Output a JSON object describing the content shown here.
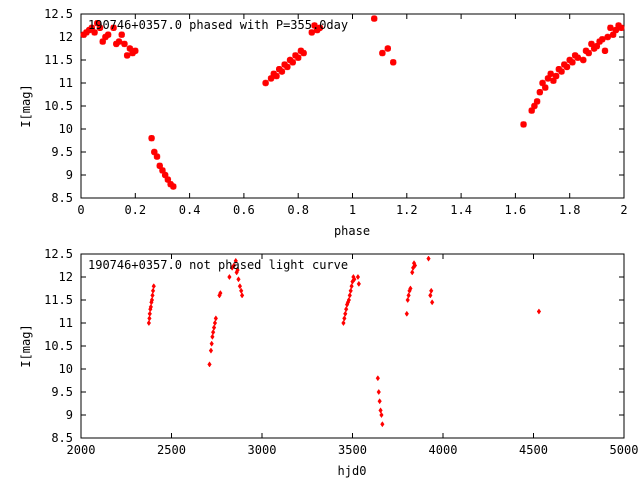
{
  "chart_data": [
    {
      "type": "scatter",
      "title": "190746+0357.0 phased with P=355.0day",
      "xlabel": "phase",
      "ylabel": "I[mag]",
      "xlim": [
        0,
        2
      ],
      "ylim": [
        12.5,
        8.5
      ],
      "y_inverted": true,
      "xticks": [
        "0",
        "0.2",
        "0.4",
        "0.6",
        "0.8",
        "1",
        "1.2",
        "1.4",
        "1.6",
        "1.8",
        "2"
      ],
      "yticks": [
        "8.5",
        "9",
        "9.5",
        "10",
        "10.5",
        "11",
        "11.5",
        "12",
        "12.5"
      ],
      "marker_color": "#ff0000",
      "grid": false,
      "series": [
        {
          "points": [
            [
              0.01,
              12.05
            ],
            [
              0.02,
              12.1
            ],
            [
              0.03,
              12.15
            ],
            [
              0.04,
              12.2
            ],
            [
              0.05,
              12.1
            ],
            [
              0.06,
              12.3
            ],
            [
              0.07,
              12.2
            ],
            [
              0.08,
              11.9
            ],
            [
              0.09,
              12.0
            ],
            [
              0.1,
              12.05
            ],
            [
              0.12,
              12.2
            ],
            [
              0.13,
              11.85
            ],
            [
              0.14,
              11.9
            ],
            [
              0.15,
              12.05
            ],
            [
              0.16,
              11.85
            ],
            [
              0.17,
              11.6
            ],
            [
              0.18,
              11.75
            ],
            [
              0.19,
              11.65
            ],
            [
              0.2,
              11.7
            ],
            [
              0.26,
              9.8
            ],
            [
              0.27,
              9.5
            ],
            [
              0.28,
              9.4
            ],
            [
              0.29,
              9.2
            ],
            [
              0.3,
              9.1
            ],
            [
              0.31,
              9.0
            ],
            [
              0.32,
              8.9
            ],
            [
              0.33,
              8.8
            ],
            [
              0.34,
              8.75
            ],
            [
              0.68,
              11.0
            ],
            [
              0.7,
              11.1
            ],
            [
              0.71,
              11.2
            ],
            [
              0.72,
              11.15
            ],
            [
              0.73,
              11.3
            ],
            [
              0.74,
              11.25
            ],
            [
              0.75,
              11.4
            ],
            [
              0.76,
              11.35
            ],
            [
              0.77,
              11.5
            ],
            [
              0.78,
              11.45
            ],
            [
              0.79,
              11.6
            ],
            [
              0.8,
              11.55
            ],
            [
              0.81,
              11.7
            ],
            [
              0.82,
              11.65
            ],
            [
              0.85,
              12.1
            ],
            [
              0.86,
              12.25
            ],
            [
              0.87,
              12.15
            ],
            [
              0.88,
              12.2
            ],
            [
              1.08,
              12.4
            ],
            [
              1.11,
              11.65
            ],
            [
              1.13,
              11.75
            ],
            [
              1.15,
              11.45
            ],
            [
              1.63,
              10.1
            ],
            [
              1.66,
              10.4
            ],
            [
              1.67,
              10.5
            ],
            [
              1.68,
              10.6
            ],
            [
              1.69,
              10.8
            ],
            [
              1.7,
              11.0
            ],
            [
              1.71,
              10.9
            ],
            [
              1.72,
              11.1
            ],
            [
              1.73,
              11.2
            ],
            [
              1.74,
              11.05
            ],
            [
              1.75,
              11.15
            ],
            [
              1.76,
              11.3
            ],
            [
              1.77,
              11.25
            ],
            [
              1.78,
              11.4
            ],
            [
              1.79,
              11.35
            ],
            [
              1.8,
              11.5
            ],
            [
              1.81,
              11.45
            ],
            [
              1.82,
              11.6
            ],
            [
              1.83,
              11.55
            ],
            [
              1.85,
              11.5
            ],
            [
              1.86,
              11.7
            ],
            [
              1.87,
              11.65
            ],
            [
              1.88,
              11.85
            ],
            [
              1.89,
              11.75
            ],
            [
              1.9,
              11.8
            ],
            [
              1.91,
              11.9
            ],
            [
              1.92,
              11.95
            ],
            [
              1.93,
              11.7
            ],
            [
              1.94,
              12.0
            ],
            [
              1.95,
              12.2
            ],
            [
              1.96,
              12.05
            ],
            [
              1.97,
              12.15
            ],
            [
              1.98,
              12.25
            ],
            [
              1.99,
              12.2
            ]
          ]
        }
      ]
    },
    {
      "type": "scatter",
      "title": "190746+0357.0 not phased light curve",
      "xlabel": "hjd0",
      "ylabel": "I[mag]",
      "xlim": [
        2000,
        5000
      ],
      "ylim": [
        12.5,
        8.5
      ],
      "y_inverted": true,
      "xticks": [
        "2000",
        "2500",
        "3000",
        "3500",
        "4000",
        "4500",
        "5000"
      ],
      "yticks": [
        "8.5",
        "9",
        "9.5",
        "10",
        "10.5",
        "11",
        "11.5",
        "12",
        "12.5"
      ],
      "marker_color": "#ff0000",
      "grid": false,
      "series": [
        {
          "points": [
            [
              2375,
              11.0
            ],
            [
              2378,
              11.1
            ],
            [
              2380,
              11.2
            ],
            [
              2383,
              11.3
            ],
            [
              2386,
              11.35
            ],
            [
              2389,
              11.45
            ],
            [
              2392,
              11.5
            ],
            [
              2395,
              11.6
            ],
            [
              2398,
              11.7
            ],
            [
              2402,
              11.8
            ],
            [
              2710,
              10.1
            ],
            [
              2718,
              10.4
            ],
            [
              2722,
              10.55
            ],
            [
              2726,
              10.7
            ],
            [
              2730,
              10.8
            ],
            [
              2735,
              10.9
            ],
            [
              2740,
              11.0
            ],
            [
              2745,
              11.1
            ],
            [
              2765,
              11.6
            ],
            [
              2770,
              11.65
            ],
            [
              2820,
              12.0
            ],
            [
              2835,
              12.2
            ],
            [
              2845,
              12.25
            ],
            [
              2855,
              12.35
            ],
            [
              2860,
              12.1
            ],
            [
              2865,
              12.15
            ],
            [
              2870,
              11.95
            ],
            [
              2878,
              11.8
            ],
            [
              2885,
              11.7
            ],
            [
              2890,
              11.6
            ],
            [
              3450,
              11.0
            ],
            [
              3455,
              11.1
            ],
            [
              3460,
              11.2
            ],
            [
              3465,
              11.3
            ],
            [
              3470,
              11.4
            ],
            [
              3475,
              11.45
            ],
            [
              3480,
              11.5
            ],
            [
              3485,
              11.6
            ],
            [
              3490,
              11.7
            ],
            [
              3495,
              11.8
            ],
            [
              3500,
              11.9
            ],
            [
              3505,
              12.0
            ],
            [
              3510,
              11.95
            ],
            [
              3530,
              12.0
            ],
            [
              3535,
              11.85
            ],
            [
              3640,
              9.8
            ],
            [
              3645,
              9.5
            ],
            [
              3650,
              9.3
            ],
            [
              3655,
              9.1
            ],
            [
              3660,
              9.0
            ],
            [
              3665,
              8.8
            ],
            [
              3800,
              11.2
            ],
            [
              3805,
              11.5
            ],
            [
              3810,
              11.6
            ],
            [
              3815,
              11.7
            ],
            [
              3820,
              11.75
            ],
            [
              3830,
              12.1
            ],
            [
              3835,
              12.2
            ],
            [
              3840,
              12.3
            ],
            [
              3845,
              12.25
            ],
            [
              3920,
              12.4
            ],
            [
              3930,
              11.6
            ],
            [
              3935,
              11.7
            ],
            [
              3940,
              11.45
            ],
            [
              4530,
              11.25
            ]
          ]
        }
      ]
    }
  ]
}
